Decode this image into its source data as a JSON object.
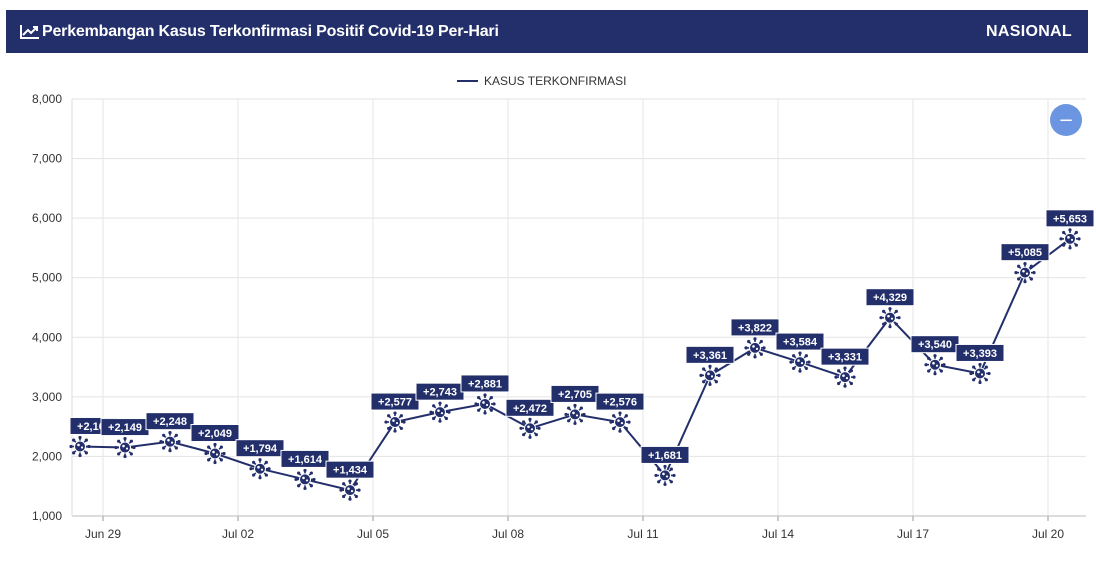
{
  "header": {
    "title": "Perkembangan Kasus Terkonfirmasi Positif Covid-19 Per-Hari",
    "title_icon": "line-chart-icon",
    "scope": "NASIONAL",
    "bg_color": "#232f6b"
  },
  "zoom_button": {
    "label": "−",
    "color": "#6b95e0"
  },
  "chart_data": {
    "type": "line",
    "legend": {
      "label": "KASUS TERKONFIRMASI",
      "position": "top-center"
    },
    "grid": true,
    "color": "#232f6b",
    "ylim": [
      1000,
      8000
    ],
    "yticks": [
      "1,000",
      "2,000",
      "3,000",
      "4,000",
      "5,000",
      "6,000",
      "7,000",
      "8,000"
    ],
    "xticks": [
      "Jun 29",
      "Jul 02",
      "Jul 05",
      "Jul 08",
      "Jul 11",
      "Jul 14",
      "Jul 17",
      "Jul 20"
    ],
    "x": [
      "Jun 29",
      "Jun 30",
      "Jul 01",
      "Jul 02",
      "Jul 03",
      "Jul 04",
      "Jul 05",
      "Jul 06",
      "Jul 07",
      "Jul 08",
      "Jul 09",
      "Jul 10",
      "Jul 11",
      "Jul 12",
      "Jul 13",
      "Jul 14",
      "Jul 15",
      "Jul 16",
      "Jul 17",
      "Jul 18",
      "Jul 19",
      "Jul 20"
    ],
    "values": [
      2167,
      2149,
      2248,
      2049,
      1794,
      1614,
      1434,
      2577,
      2743,
      2881,
      2472,
      2705,
      2576,
      1681,
      3361,
      3822,
      3584,
      3331,
      4329,
      3540,
      3393,
      5085
    ],
    "labels": [
      "+2,167",
      "+2,149",
      "+2,248",
      "+2,049",
      "+1,794",
      "+1,614",
      "+1,434",
      "+2,577",
      "+2,743",
      "+2,881",
      "+2,472",
      "+2,705",
      "+2,576",
      "+1,681",
      "+3,361",
      "+3,822",
      "+3,584",
      "+3,331",
      "+4,329",
      "+3,540",
      "+3,393",
      "+5,085"
    ],
    "extra_point": {
      "value": 5653,
      "label": "+5,653"
    }
  }
}
